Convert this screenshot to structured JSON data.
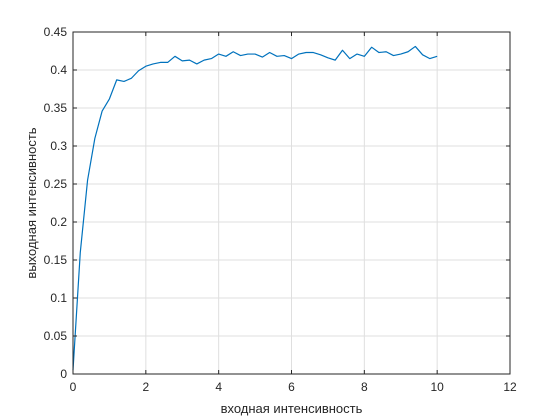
{
  "chart_data": {
    "type": "line",
    "title": "",
    "xlabel": "входная интенсивность",
    "ylabel": "выходная интенсивность",
    "xlim": [
      0,
      12
    ],
    "ylim": [
      0,
      0.45
    ],
    "x_ticks": [
      0,
      2,
      4,
      6,
      8,
      10,
      12
    ],
    "x_tick_labels": [
      "0",
      "2",
      "4",
      "6",
      "8",
      "10",
      "12"
    ],
    "y_ticks": [
      0,
      0.05,
      0.1,
      0.15,
      0.2,
      0.25,
      0.3,
      0.35,
      0.4,
      0.45
    ],
    "y_tick_labels": [
      "0",
      "0.05",
      "0.1",
      "0.15",
      "0.2",
      "0.25",
      "0.3",
      "0.35",
      "0.4",
      "0.45"
    ],
    "grid": true,
    "legend": "none",
    "colors": {
      "line": "#0072bd",
      "axes": "#262626",
      "grid": "#dfdfdf"
    },
    "series": [
      {
        "x": [
          0,
          0.2,
          0.4,
          0.6,
          0.8,
          1.0,
          1.2,
          1.4,
          1.6,
          1.8,
          2.0,
          2.2,
          2.4,
          2.6,
          2.8,
          3.0,
          3.2,
          3.4,
          3.6,
          3.8,
          4.0,
          4.2,
          4.4,
          4.6,
          4.8,
          5.0,
          5.2,
          5.4,
          5.6,
          5.8,
          6.0,
          6.2,
          6.4,
          6.6,
          6.8,
          7.0,
          7.2,
          7.4,
          7.6,
          7.8,
          8.0,
          8.2,
          8.4,
          8.6,
          8.8,
          9.0,
          9.2,
          9.4,
          9.6,
          9.8,
          10.0
        ],
        "y": [
          0.005,
          0.16,
          0.255,
          0.31,
          0.346,
          0.362,
          0.387,
          0.385,
          0.389,
          0.399,
          0.405,
          0.408,
          0.41,
          0.41,
          0.418,
          0.412,
          0.413,
          0.408,
          0.413,
          0.415,
          0.421,
          0.418,
          0.424,
          0.419,
          0.421,
          0.421,
          0.417,
          0.423,
          0.418,
          0.419,
          0.415,
          0.421,
          0.423,
          0.423,
          0.42,
          0.416,
          0.413,
          0.426,
          0.415,
          0.421,
          0.418,
          0.43,
          0.423,
          0.424,
          0.419,
          0.421,
          0.424,
          0.431,
          0.42,
          0.415,
          0.418
        ]
      }
    ]
  }
}
